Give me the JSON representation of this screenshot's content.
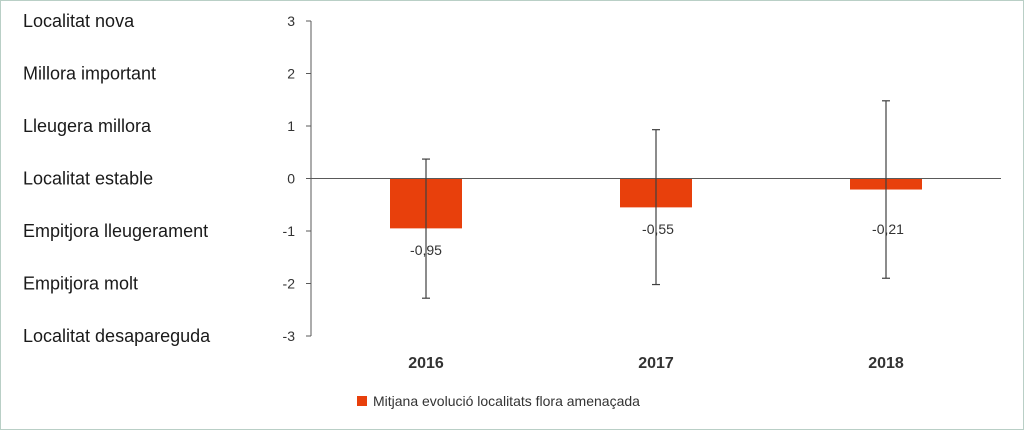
{
  "chart_data": {
    "type": "bar",
    "title": "",
    "xlabel": "",
    "ylabel": "",
    "categories": [
      "2016",
      "2017",
      "2018"
    ],
    "series": [
      {
        "name": "Mitjana evolució localitats flora amenaçada",
        "values": [
          -0.95,
          -0.55,
          -0.21
        ],
        "data_labels": [
          "-0,95",
          "-0,55",
          "-0,21"
        ],
        "error_low": [
          -2.28,
          -2.02,
          -1.9
        ],
        "error_high": [
          0.37,
          0.93,
          1.48
        ],
        "color": "#e8400c"
      }
    ],
    "ylim": [
      -3,
      3
    ],
    "y_ticks": [
      {
        "value": 3,
        "label": "3"
      },
      {
        "value": 2,
        "label": "2"
      },
      {
        "value": 1,
        "label": "1"
      },
      {
        "value": 0,
        "label": "0"
      },
      {
        "value": -1,
        "label": "-1"
      },
      {
        "value": -2,
        "label": "-2"
      },
      {
        "value": -3,
        "label": "-3"
      }
    ],
    "y_category_labels": [
      {
        "value": 3,
        "label": "Localitat nova"
      },
      {
        "value": 2,
        "label": "Millora important"
      },
      {
        "value": 1,
        "label": "Lleugera millora"
      },
      {
        "value": 0,
        "label": "Localitat estable"
      },
      {
        "value": -1,
        "label": "Empitjora lleugerament"
      },
      {
        "value": -2,
        "label": "Empitjora molt"
      },
      {
        "value": -3,
        "label": "Localitat desapareguda"
      }
    ],
    "grid": false,
    "legend": "bottom",
    "axis_color": "#595959"
  }
}
